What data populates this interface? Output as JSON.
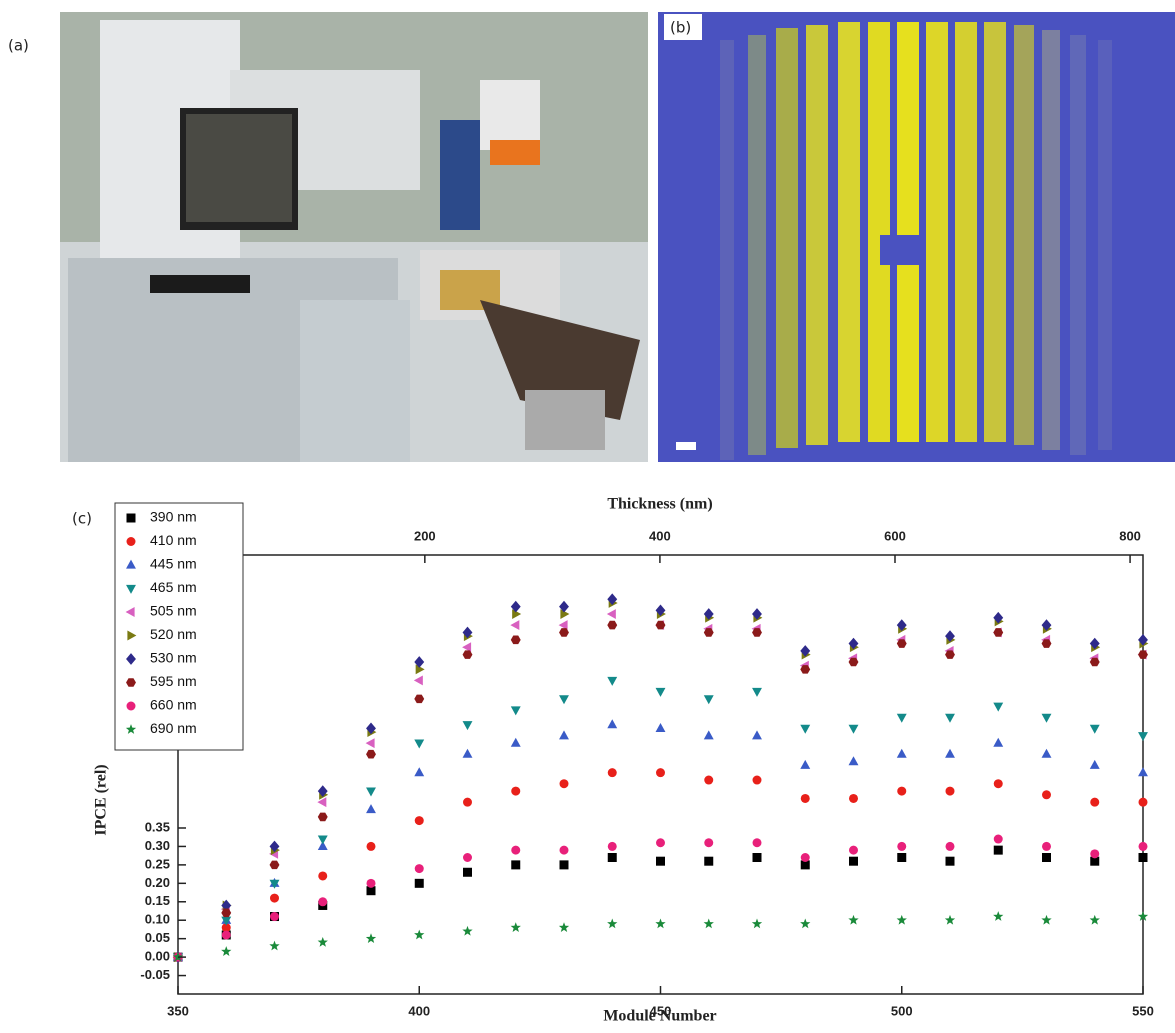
{
  "panel_labels": [
    "(a)",
    "(b)",
    "(c)"
  ],
  "chart_data": {
    "type": "scatter",
    "xlabel": "Module Number",
    "x2label": "Thickness (nm)",
    "ylabel": "IPCE (rel)",
    "xlim": [
      350,
      550
    ],
    "xticks": [
      350,
      400,
      450,
      500,
      550
    ],
    "x2lim": [
      -10,
      811
    ],
    "x2ticks": [
      200,
      400,
      600,
      800
    ],
    "ylim": [
      -0.1,
      1.09
    ],
    "yticks": [
      {
        "value": -0.05,
        "label": "-0.05"
      },
      {
        "value": 0,
        "label": "0.00"
      },
      {
        "value": 0.05,
        "label": "0.05"
      },
      {
        "value": 0.1,
        "label": "0.10"
      },
      {
        "value": 0.15,
        "label": "0.15"
      },
      {
        "value": 0.2,
        "label": "0.20"
      },
      {
        "value": 0.25,
        "label": "0.25"
      },
      {
        "value": 0.3,
        "label": "0.30"
      },
      {
        "value": 0.35,
        "label": "0.35"
      }
    ],
    "x": [
      350,
      360,
      370,
      380,
      390,
      400,
      410,
      420,
      430,
      440,
      450,
      460,
      470,
      480,
      490,
      500,
      510,
      520,
      530,
      540,
      550
    ],
    "series": [
      {
        "name": "390 nm",
        "color": "#000000",
        "marker": "square",
        "values": [
          0,
          0.06,
          0.11,
          0.14,
          0.18,
          0.2,
          0.23,
          0.25,
          0.25,
          0.27,
          0.26,
          0.26,
          0.27,
          0.25,
          0.26,
          0.27,
          0.26,
          0.29,
          0.27,
          0.26,
          0.27
        ]
      },
      {
        "name": "410 nm",
        "color": "#e8201a",
        "marker": "circle",
        "values": [
          0,
          0.08,
          0.16,
          0.22,
          0.3,
          0.37,
          0.42,
          0.45,
          0.47,
          0.5,
          0.5,
          0.48,
          0.48,
          0.43,
          0.43,
          0.45,
          0.45,
          0.47,
          0.44,
          0.42,
          0.42
        ]
      },
      {
        "name": "445 nm",
        "color": "#3a5bc7",
        "marker": "triangle-up",
        "values": [
          0,
          0.1,
          0.2,
          0.3,
          0.4,
          0.5,
          0.55,
          0.58,
          0.6,
          0.63,
          0.62,
          0.6,
          0.6,
          0.52,
          0.53,
          0.55,
          0.55,
          0.58,
          0.55,
          0.52,
          0.5
        ]
      },
      {
        "name": "465 nm",
        "color": "#138a8a",
        "marker": "triangle-down",
        "values": [
          0,
          0.1,
          0.2,
          0.32,
          0.45,
          0.58,
          0.63,
          0.67,
          0.7,
          0.75,
          0.72,
          0.7,
          0.72,
          0.62,
          0.62,
          0.65,
          0.65,
          0.68,
          0.65,
          0.62,
          0.6
        ]
      },
      {
        "name": "505 nm",
        "color": "#d860c0",
        "marker": "triangle-left",
        "values": [
          0,
          0.13,
          0.28,
          0.42,
          0.58,
          0.75,
          0.84,
          0.9,
          0.9,
          0.93,
          0.9,
          0.89,
          0.89,
          0.79,
          0.81,
          0.86,
          0.83,
          0.88,
          0.86,
          0.81,
          0.82
        ]
      },
      {
        "name": "520 nm",
        "color": "#7a7a12",
        "marker": "triangle-right",
        "values": [
          0,
          0.14,
          0.29,
          0.44,
          0.61,
          0.78,
          0.87,
          0.93,
          0.93,
          0.96,
          0.93,
          0.92,
          0.92,
          0.82,
          0.84,
          0.89,
          0.86,
          0.91,
          0.89,
          0.84,
          0.85
        ]
      },
      {
        "name": "530 nm",
        "color": "#2e2a8a",
        "marker": "diamond",
        "values": [
          0,
          0.14,
          0.3,
          0.45,
          0.62,
          0.8,
          0.88,
          0.95,
          0.95,
          0.97,
          0.94,
          0.93,
          0.93,
          0.83,
          0.85,
          0.9,
          0.87,
          0.92,
          0.9,
          0.85,
          0.86
        ]
      },
      {
        "name": "595 nm",
        "color": "#8b1a1a",
        "marker": "hexagon",
        "values": [
          0,
          0.12,
          0.25,
          0.38,
          0.55,
          0.7,
          0.82,
          0.86,
          0.88,
          0.9,
          0.9,
          0.88,
          0.88,
          0.78,
          0.8,
          0.85,
          0.82,
          0.88,
          0.85,
          0.8,
          0.82
        ]
      },
      {
        "name": "660 nm",
        "color": "#e8207a",
        "marker": "circle",
        "values": [
          0,
          0.06,
          0.11,
          0.15,
          0.2,
          0.24,
          0.27,
          0.29,
          0.29,
          0.3,
          0.31,
          0.31,
          0.31,
          0.27,
          0.29,
          0.3,
          0.3,
          0.32,
          0.3,
          0.28,
          0.3
        ]
      },
      {
        "name": "690 nm",
        "color": "#1a8a3a",
        "marker": "star",
        "values": [
          0,
          0.015,
          0.03,
          0.04,
          0.05,
          0.06,
          0.07,
          0.08,
          0.08,
          0.09,
          0.09,
          0.09,
          0.09,
          0.09,
          0.1,
          0.1,
          0.1,
          0.11,
          0.1,
          0.1,
          0.11
        ]
      }
    ]
  }
}
